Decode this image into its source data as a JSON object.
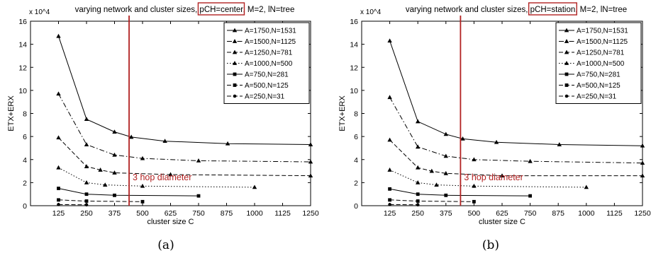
{
  "panels": [
    {
      "caption": "(a)",
      "title_prefix": "varying network and cluster sizes, ",
      "title_boxed": "pCH=center,",
      "title_suffix": " M=2, lN=tree",
      "chart_data": {
        "type": "line",
        "xlabel": "cluster size C",
        "ylabel": "ETX+ERX",
        "exponent_label": "x 10^4",
        "xlim": [
          0,
          1250
        ],
        "ylim": [
          0,
          160000
        ],
        "xticks": [
          125,
          250,
          375,
          500,
          625,
          750,
          875,
          1000,
          1125,
          1250
        ],
        "yticks": [
          0,
          2,
          4,
          6,
          8,
          10,
          12,
          14,
          16
        ],
        "annotation": "3 hop diameter",
        "annotation_x": 440,
        "series": [
          {
            "name": "A=1750,N=1531",
            "style": "solid",
            "marker": "triangle",
            "x": [
              125,
              250,
              375,
              450,
              600,
              880,
              1250
            ],
            "y": [
              147000,
              75000,
              64000,
              59500,
              56000,
              53800,
              53000
            ]
          },
          {
            "name": "A=1500,N=1125",
            "style": "dashdot",
            "marker": "triangle",
            "x": [
              125,
              250,
              375,
              500,
              750,
              1250
            ],
            "y": [
              97000,
              53000,
              44000,
              41000,
              39000,
              38000
            ]
          },
          {
            "name": "A=1250,N=781",
            "style": "dashed",
            "marker": "triangle",
            "x": [
              125,
              250,
              312,
              375,
              625,
              1250
            ],
            "y": [
              59000,
              34000,
              31000,
              28500,
              27000,
              26000
            ]
          },
          {
            "name": "A=1000,N=500",
            "style": "dotted",
            "marker": "triangle",
            "x": [
              125,
              250,
              333,
              500,
              1000
            ],
            "y": [
              33000,
              20000,
              18000,
              17000,
              16000
            ]
          },
          {
            "name": "A=750,N=281",
            "style": "solid",
            "marker": "square",
            "x": [
              125,
              250,
              375,
              750
            ],
            "y": [
              15000,
              10000,
              9000,
              8500
            ]
          },
          {
            "name": "A=500,N=125",
            "style": "dashed",
            "marker": "square",
            "x": [
              125,
              250,
              500
            ],
            "y": [
              5000,
              4000,
              3500
            ]
          },
          {
            "name": "A=250,N=31",
            "style": "dashed",
            "marker": "circle",
            "x": [
              125,
              250
            ],
            "y": [
              1000,
              800
            ]
          }
        ]
      }
    },
    {
      "caption": "(b)",
      "title_prefix": "varying network and cluster sizes, ",
      "title_boxed": "pCH=station,",
      "title_suffix": " M=2, lN=tree",
      "chart_data": {
        "type": "line",
        "xlabel": "cluster size C",
        "ylabel": "ETX+ERX",
        "exponent_label": "x 10^4",
        "xlim": [
          0,
          1250
        ],
        "ylim": [
          0,
          160000
        ],
        "xticks": [
          125,
          250,
          375,
          500,
          625,
          750,
          875,
          1000,
          1125,
          1250
        ],
        "yticks": [
          0,
          2,
          4,
          6,
          8,
          10,
          12,
          14,
          16
        ],
        "annotation": "3 hop diameter",
        "annotation_x": 440,
        "series": [
          {
            "name": "A=1750,N=1531",
            "style": "solid",
            "marker": "triangle",
            "x": [
              125,
              250,
              375,
              450,
              600,
              880,
              1250
            ],
            "y": [
              143000,
              73000,
              62000,
              58000,
              55000,
              53000,
              52000
            ]
          },
          {
            "name": "A=1500,N=1125",
            "style": "dashdot",
            "marker": "triangle",
            "x": [
              125,
              250,
              375,
              500,
              750,
              1250
            ],
            "y": [
              94000,
              51000,
              43000,
              40000,
              38500,
              37000
            ]
          },
          {
            "name": "A=1250,N=781",
            "style": "dashed",
            "marker": "triangle",
            "x": [
              125,
              250,
              312,
              375,
              625,
              1250
            ],
            "y": [
              57000,
              33000,
              30000,
              28000,
              26000,
              26000
            ]
          },
          {
            "name": "A=1000,N=500",
            "style": "dotted",
            "marker": "triangle",
            "x": [
              125,
              250,
              333,
              500,
              1000
            ],
            "y": [
              31000,
              20000,
              18000,
              17000,
              16000
            ]
          },
          {
            "name": "A=750,N=281",
            "style": "solid",
            "marker": "square",
            "x": [
              125,
              250,
              375,
              750
            ],
            "y": [
              14500,
              10000,
              9000,
              8500
            ]
          },
          {
            "name": "A=500,N=125",
            "style": "dashed",
            "marker": "square",
            "x": [
              125,
              250,
              500
            ],
            "y": [
              5000,
              4000,
              3500
            ]
          },
          {
            "name": "A=250,N=31",
            "style": "dashed",
            "marker": "circle",
            "x": [
              125,
              250
            ],
            "y": [
              1000,
              800
            ]
          }
        ]
      }
    }
  ]
}
